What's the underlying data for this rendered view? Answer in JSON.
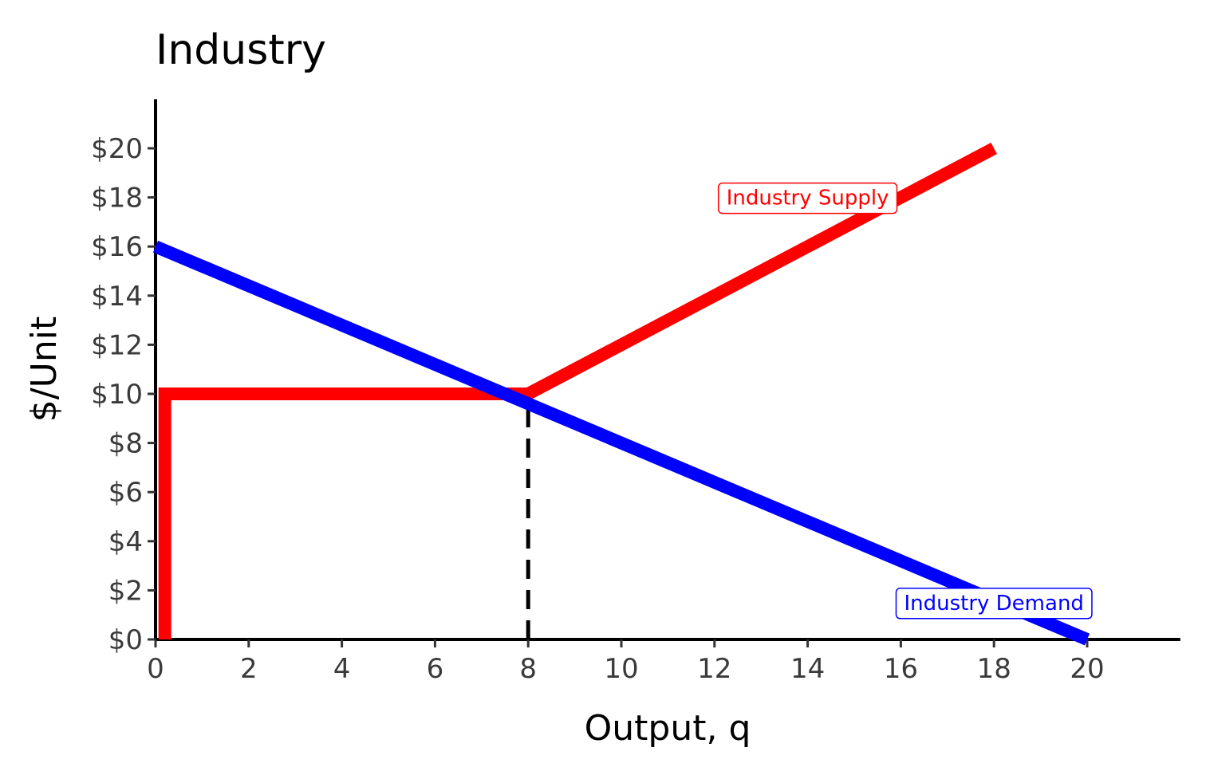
{
  "chart_data": {
    "type": "line",
    "title": "Industry",
    "xlabel": "Output, q",
    "ylabel": "$/Unit",
    "xlim": [
      0,
      22
    ],
    "ylim": [
      0,
      22
    ],
    "x_ticks": [
      0,
      2,
      4,
      6,
      8,
      10,
      12,
      14,
      16,
      18,
      20
    ],
    "y_ticks": [
      0,
      2,
      4,
      6,
      8,
      10,
      12,
      14,
      16,
      18,
      20
    ],
    "x_tick_labels": [
      "0",
      "2",
      "4",
      "6",
      "8",
      "10",
      "12",
      "14",
      "16",
      "18",
      "20"
    ],
    "y_tick_labels": [
      "$0",
      "$2",
      "$4",
      "$6",
      "$8",
      "$10",
      "$12",
      "$14",
      "$16",
      "$18",
      "$20"
    ],
    "grid": false,
    "series": [
      {
        "name": "Industry Supply",
        "color": "#ff0000",
        "points": [
          [
            0.2,
            0
          ],
          [
            0.2,
            10
          ],
          [
            8,
            10
          ],
          [
            18,
            20
          ]
        ]
      },
      {
        "name": "Industry Demand",
        "color": "#0000ff",
        "points": [
          [
            0,
            16
          ],
          [
            20,
            0
          ]
        ]
      }
    ],
    "reference_lines": [
      {
        "type": "vertical-dashed",
        "x": 8,
        "y_from": 0,
        "y_to": 10,
        "color": "#000000"
      }
    ],
    "annotations": [
      {
        "text": "Industry Supply",
        "x": 14,
        "y": 18,
        "color": "#ff0000"
      },
      {
        "text": "Industry Demand",
        "x": 18,
        "y": 1.5,
        "color": "#0000ff"
      }
    ]
  }
}
